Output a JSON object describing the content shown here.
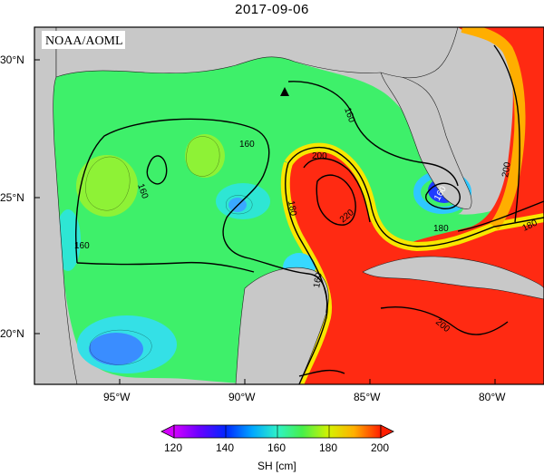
{
  "title": "2017-09-06",
  "watermark": "NOAA/AOML",
  "lat_labels": [
    "30°N",
    "25°N",
    "20°N"
  ],
  "lon_labels": [
    "95°W",
    "90°W",
    "85°W",
    "80°W"
  ],
  "contour_labels": [
    "160",
    "160",
    "160",
    "160",
    "160",
    "180",
    "200",
    "220",
    "180",
    "180",
    "200",
    "160",
    "200"
  ],
  "colorbar": {
    "ticks": [
      "120",
      "140",
      "160",
      "180",
      "200"
    ],
    "label": "SH [cm]"
  },
  "colors": {
    "land": "#c8c8c8",
    "ocean_green": "#3ef06a",
    "ocean_cyan": "#33e6d9",
    "ocean_blue": "#2f86ff",
    "loop_red": "#ff2a12"
  }
}
